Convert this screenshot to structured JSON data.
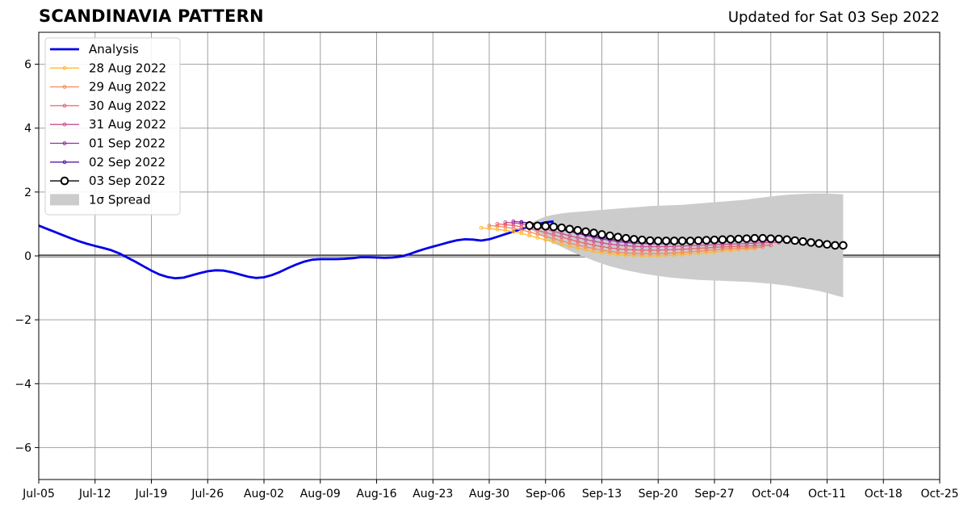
{
  "chart_data": {
    "type": "line",
    "title": "SCANDINAVIA PATTERN",
    "subtitle": "Updated for Sat 03 Sep 2022",
    "xlabel": "",
    "ylabel": "",
    "ylim": [
      -7,
      7
    ],
    "yticks": [
      -6,
      -4,
      -2,
      0,
      2,
      4,
      6
    ],
    "ytick_labels": [
      "−6",
      "−4",
      "−2",
      "0",
      "2",
      "4",
      "6"
    ],
    "xlim": [
      "2022-07-05",
      "2022-10-25"
    ],
    "xticks": [
      "2022-07-05",
      "2022-07-12",
      "2022-07-19",
      "2022-07-26",
      "2022-08-02",
      "2022-08-09",
      "2022-08-16",
      "2022-08-23",
      "2022-08-30",
      "2022-09-06",
      "2022-09-13",
      "2022-09-20",
      "2022-09-27",
      "2022-10-04",
      "2022-10-11",
      "2022-10-18",
      "2022-10-25"
    ],
    "xtick_labels": [
      "Jul-05",
      "Jul-12",
      "Jul-19",
      "Jul-26",
      "Aug-02",
      "Aug-09",
      "Aug-16",
      "Aug-23",
      "Aug-30",
      "Sep-06",
      "Sep-13",
      "Sep-20",
      "Sep-27",
      "Oct-04",
      "Oct-11",
      "Oct-18",
      "Oct-25"
    ],
    "grid": true,
    "legend_position": "top-left",
    "analysis": {
      "name": "Analysis",
      "color": "#0000e6",
      "start": "2022-07-05",
      "values": [
        0.95,
        0.85,
        0.75,
        0.65,
        0.55,
        0.46,
        0.38,
        0.31,
        0.25,
        0.18,
        0.08,
        -0.05,
        -0.18,
        -0.32,
        -0.46,
        -0.58,
        -0.66,
        -0.7,
        -0.68,
        -0.61,
        -0.54,
        -0.48,
        -0.45,
        -0.46,
        -0.51,
        -0.58,
        -0.65,
        -0.69,
        -0.67,
        -0.6,
        -0.5,
        -0.38,
        -0.27,
        -0.18,
        -0.12,
        -0.1,
        -0.1,
        -0.1,
        -0.09,
        -0.07,
        -0.04,
        -0.04,
        -0.05,
        -0.06,
        -0.05,
        -0.02,
        0.05,
        0.14,
        0.22,
        0.29,
        0.36,
        0.43,
        0.49,
        0.52,
        0.51,
        0.48,
        0.52,
        0.6,
        0.68,
        0.76,
        0.84,
        0.92,
        0.99,
        1.05,
        1.08
      ]
    },
    "forecasts": [
      {
        "name": "28 Aug 2022",
        "color": "#ffb833",
        "start": "2022-08-29",
        "values": [
          0.88,
          0.86,
          0.83,
          0.8,
          0.76,
          0.71,
          0.64,
          0.57,
          0.5,
          0.43,
          0.36,
          0.3,
          0.24,
          0.19,
          0.14,
          0.1,
          0.07,
          0.04,
          0.02,
          0.01,
          0.0,
          0.0,
          0.0,
          0.01,
          0.02,
          0.04,
          0.06,
          0.08,
          0.1,
          0.12,
          0.15,
          0.17,
          0.19,
          0.21,
          0.22
        ]
      },
      {
        "name": "29 Aug 2022",
        "color": "#f4895f",
        "start": "2022-08-30",
        "values": [
          0.95,
          0.93,
          0.9,
          0.86,
          0.81,
          0.75,
          0.68,
          0.61,
          0.54,
          0.47,
          0.4,
          0.34,
          0.28,
          0.23,
          0.18,
          0.14,
          0.11,
          0.09,
          0.08,
          0.07,
          0.07,
          0.07,
          0.08,
          0.09,
          0.11,
          0.13,
          0.15,
          0.17,
          0.19,
          0.21,
          0.23,
          0.24,
          0.25,
          0.26,
          0.27
        ]
      },
      {
        "name": "30 Aug 2022",
        "color": "#e8636f",
        "start": "2022-08-31",
        "values": [
          1.0,
          0.98,
          0.95,
          0.91,
          0.86,
          0.8,
          0.73,
          0.66,
          0.59,
          0.52,
          0.45,
          0.39,
          0.34,
          0.29,
          0.25,
          0.22,
          0.2,
          0.19,
          0.18,
          0.18,
          0.18,
          0.19,
          0.2,
          0.21,
          0.22,
          0.24,
          0.25,
          0.27,
          0.28,
          0.29,
          0.3,
          0.31,
          0.32,
          0.33,
          0.33
        ]
      },
      {
        "name": "31 Aug 2022",
        "color": "#c94f93",
        "start": "2022-09-01",
        "values": [
          1.05,
          1.03,
          1.0,
          0.96,
          0.9,
          0.84,
          0.77,
          0.7,
          0.63,
          0.57,
          0.51,
          0.46,
          0.41,
          0.37,
          0.34,
          0.32,
          0.3,
          0.29,
          0.29,
          0.29,
          0.29,
          0.3,
          0.31,
          0.32,
          0.33,
          0.34,
          0.35,
          0.36,
          0.37,
          0.38,
          0.39,
          0.4,
          0.41,
          0.42,
          0.42
        ]
      },
      {
        "name": "01 Sep 2022",
        "color": "#9b2aa4",
        "start": "2022-09-02",
        "values": [
          1.08,
          1.06,
          1.03,
          0.99,
          0.94,
          0.88,
          0.82,
          0.76,
          0.7,
          0.64,
          0.58,
          0.53,
          0.49,
          0.45,
          0.42,
          0.4,
          0.39,
          0.38,
          0.38,
          0.38,
          0.39,
          0.4,
          0.41,
          0.42,
          0.43,
          0.44,
          0.45,
          0.46,
          0.47,
          0.47,
          0.48,
          0.48,
          0.49,
          0.49,
          0.49
        ]
      },
      {
        "name": "02 Sep 2022",
        "color": "#5a1c9e",
        "start": "2022-09-03",
        "values": [
          1.05,
          1.03,
          1.0,
          0.96,
          0.91,
          0.85,
          0.79,
          0.73,
          0.67,
          0.62,
          0.57,
          0.53,
          0.5,
          0.47,
          0.45,
          0.44,
          0.43,
          0.43,
          0.43,
          0.44,
          0.45,
          0.46,
          0.47,
          0.48,
          0.49,
          0.5,
          0.51,
          0.51,
          0.52,
          0.52,
          0.52,
          0.52,
          0.52,
          0.52,
          0.52
        ]
      }
    ],
    "current": {
      "name": "03 Sep 2022",
      "color": "#000000",
      "start": "2022-09-04",
      "values": [
        0.95,
        0.94,
        0.93,
        0.91,
        0.88,
        0.84,
        0.8,
        0.76,
        0.72,
        0.67,
        0.63,
        0.59,
        0.55,
        0.52,
        0.5,
        0.48,
        0.47,
        0.47,
        0.47,
        0.47,
        0.47,
        0.48,
        0.49,
        0.5,
        0.51,
        0.52,
        0.53,
        0.54,
        0.55,
        0.55,
        0.54,
        0.53,
        0.51,
        0.48,
        0.45,
        0.42,
        0.39,
        0.36,
        0.33,
        0.33
      ]
    },
    "spread": {
      "name": "1σ Spread",
      "color": "#cccccc",
      "start": "2022-09-04",
      "upper": [
        1.0,
        1.13,
        1.23,
        1.29,
        1.33,
        1.36,
        1.38,
        1.4,
        1.42,
        1.44,
        1.46,
        1.48,
        1.5,
        1.52,
        1.54,
        1.56,
        1.57,
        1.58,
        1.59,
        1.6,
        1.62,
        1.64,
        1.66,
        1.68,
        1.7,
        1.72,
        1.74,
        1.76,
        1.8,
        1.83,
        1.86,
        1.89,
        1.91,
        1.93,
        1.94,
        1.95,
        1.95,
        1.95,
        1.94,
        1.93
      ],
      "lower": [
        0.85,
        0.7,
        0.55,
        0.4,
        0.28,
        0.16,
        0.05,
        -0.05,
        -0.15,
        -0.24,
        -0.32,
        -0.39,
        -0.45,
        -0.5,
        -0.55,
        -0.59,
        -0.63,
        -0.66,
        -0.69,
        -0.71,
        -0.73,
        -0.75,
        -0.76,
        -0.77,
        -0.78,
        -0.79,
        -0.8,
        -0.81,
        -0.83,
        -0.85,
        -0.87,
        -0.9,
        -0.93,
        -0.97,
        -1.01,
        -1.05,
        -1.1,
        -1.16,
        -1.23,
        -1.3
      ]
    }
  }
}
